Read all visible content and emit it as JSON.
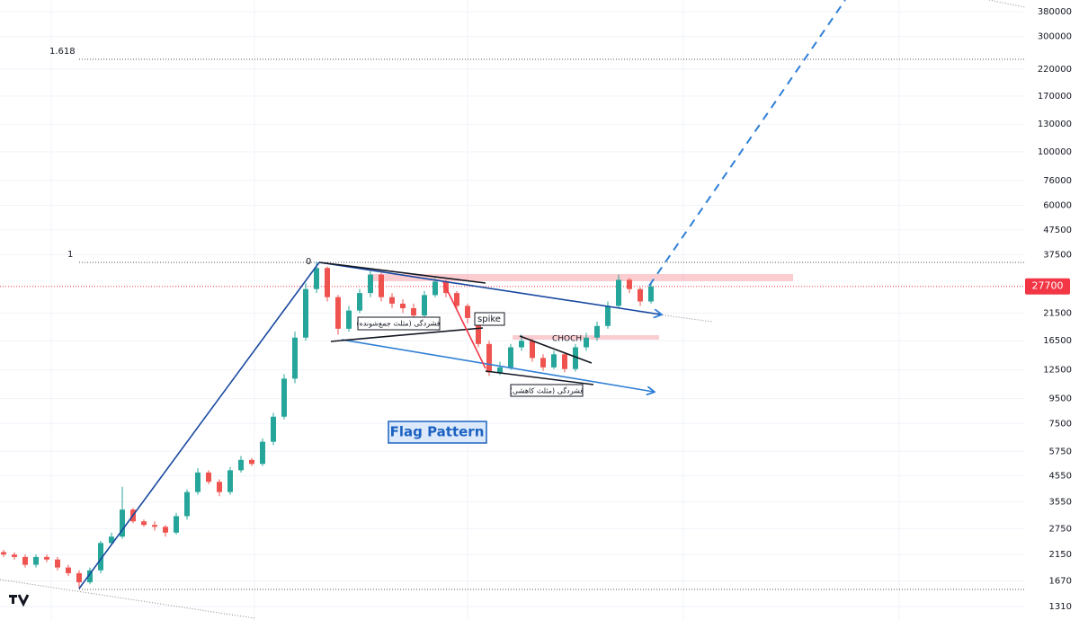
{
  "chart_data": {
    "type": "candlestick",
    "log_scale": true,
    "grid": true,
    "ylim": [
      1152,
      424700
    ],
    "yticks": [
      1310,
      1670,
      2150,
      2750,
      3550,
      4550,
      5750,
      7500,
      9500,
      12500,
      16500,
      21500,
      37500,
      47500,
      60000,
      76000,
      100000,
      130000,
      170000,
      220000,
      300000,
      380000
    ],
    "colors": {
      "up": "#26a69a",
      "down": "#ef5350"
    },
    "candles": {
      "open": [
        2200,
        2150,
        2100,
        1950,
        2100,
        2050,
        1900,
        1800,
        1650,
        1850,
        2400,
        2550,
        3300,
        2950,
        2850,
        2800,
        2650,
        3100,
        3900,
        4700,
        4300,
        3900,
        4800,
        5300,
        5100,
        6300,
        8000,
        11500,
        17000,
        27000,
        33000,
        25000,
        18500,
        22000,
        26000,
        31000,
        25000,
        23500,
        22500,
        21000,
        25500,
        29000,
        26000,
        23000,
        20500,
        16000,
        12200,
        12800,
        15500,
        16500,
        14000,
        12800,
        14500,
        12600,
        15500,
        17000,
        19000,
        23000,
        29500,
        27000,
        24000
      ],
      "high": [
        2250,
        2200,
        2150,
        2150,
        2150,
        2100,
        1950,
        1850,
        1900,
        2450,
        2650,
        4100,
        3350,
        3000,
        2950,
        2850,
        3200,
        4000,
        4900,
        4800,
        4400,
        4950,
        5500,
        5400,
        6500,
        8300,
        12000,
        18000,
        28500,
        35000,
        33500,
        25500,
        23000,
        27000,
        32000,
        31500,
        26000,
        24500,
        23500,
        26500,
        30000,
        29500,
        26500,
        23500,
        21000,
        16500,
        13500,
        16000,
        17500,
        16800,
        14500,
        15000,
        14800,
        16000,
        17800,
        19800,
        24000,
        31000,
        30000,
        27500,
        29000
      ],
      "low": [
        2100,
        2050,
        1900,
        1900,
        2000,
        1850,
        1750,
        1560,
        1620,
        1800,
        2350,
        2500,
        2900,
        2800,
        2700,
        2550,
        2600,
        3000,
        3800,
        4200,
        3750,
        3800,
        4700,
        5000,
        5000,
        6100,
        7800,
        11000,
        16500,
        26000,
        24000,
        17500,
        18000,
        21500,
        25000,
        24000,
        22500,
        21500,
        20000,
        20500,
        25000,
        25000,
        22000,
        19500,
        15500,
        11800,
        11900,
        12500,
        15000,
        13500,
        12400,
        12600,
        12200,
        12300,
        15000,
        16500,
        18500,
        22500,
        26000,
        23000,
        23500
      ],
      "close": [
        2150,
        2100,
        1950,
        2100,
        2050,
        1900,
        1800,
        1650,
        1850,
        2400,
        2550,
        3300,
        2950,
        2850,
        2800,
        2650,
        3100,
        3900,
        4700,
        4300,
        3900,
        4800,
        5300,
        5100,
        6300,
        8000,
        11500,
        17000,
        27000,
        33000,
        25000,
        18500,
        22000,
        26000,
        31000,
        25000,
        23500,
        22500,
        21000,
        25500,
        29000,
        26000,
        23000,
        20500,
        16000,
        12200,
        12800,
        15500,
        16500,
        14000,
        12800,
        14500,
        12600,
        15500,
        17000,
        19000,
        23000,
        29500,
        27000,
        24000,
        27700
      ]
    },
    "last_price": 27700,
    "last_price_color": "#f23645",
    "fib_labels": [
      "1.618",
      "1",
      "0"
    ],
    "annotations": {
      "pattern": "Flag Pattern",
      "spike": "spike",
      "choch": "CHOCH",
      "triangle_converging": "فشردگی (مثلث جمع‌شونده)",
      "triangle_descending": "فشردگی (مثلث کاهشی)"
    }
  }
}
